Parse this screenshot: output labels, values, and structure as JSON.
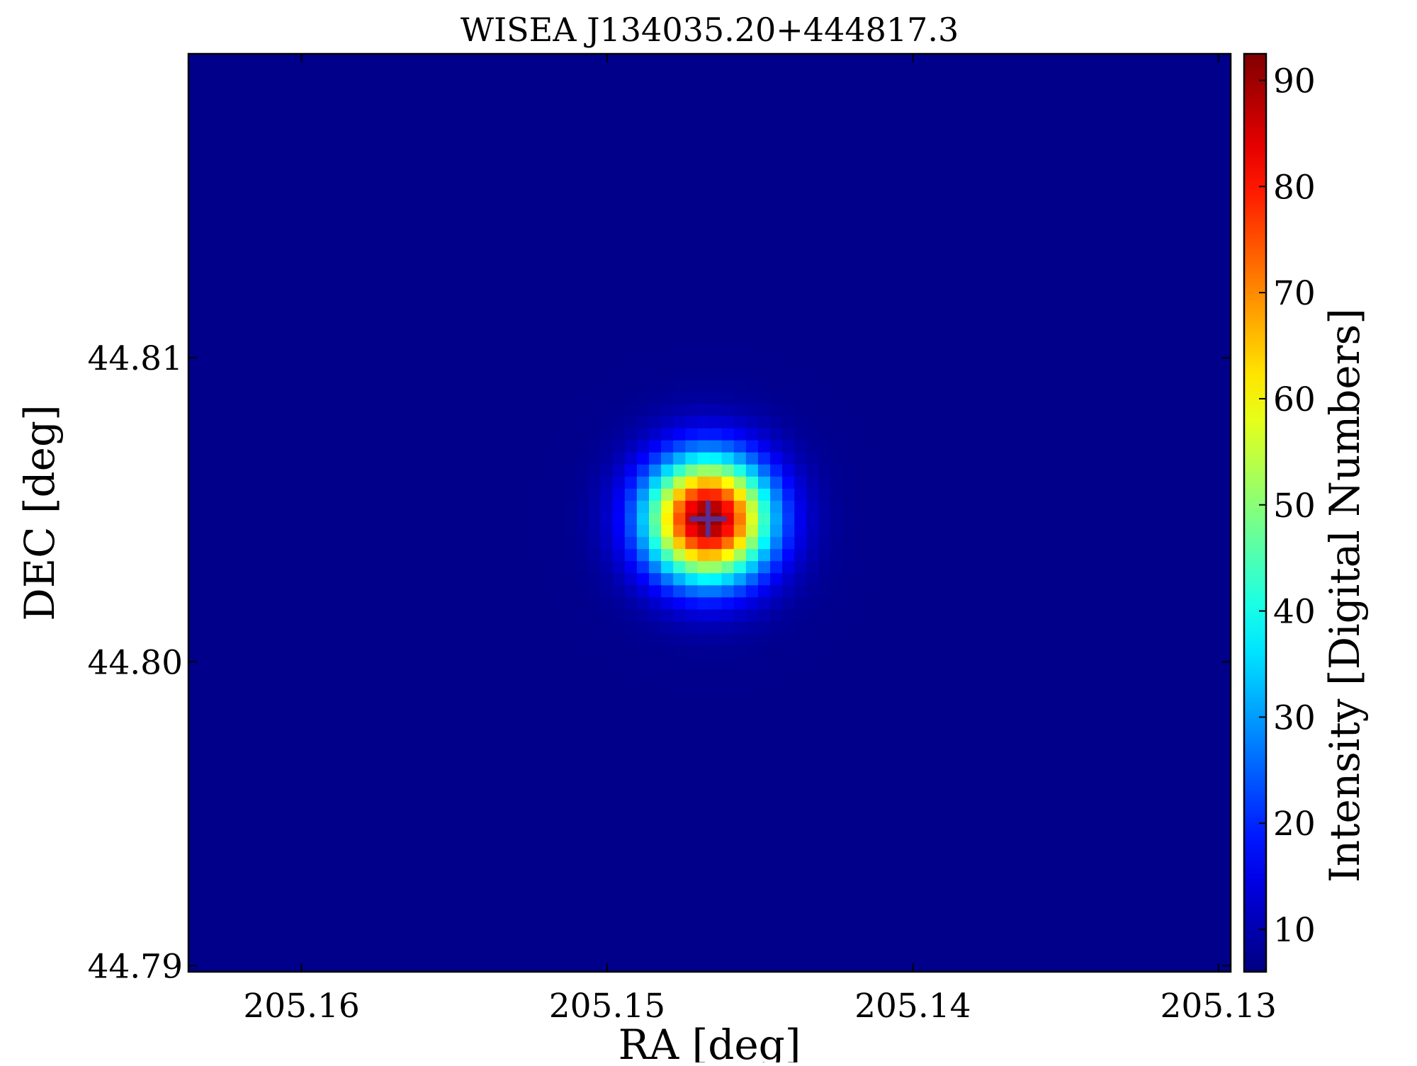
{
  "chart_data": {
    "type": "heatmap",
    "title": "WISEA J134035.20+444817.3",
    "xlabel": "RA [deg]",
    "ylabel": "DEC [deg]",
    "colorbar_label": "Intensity [Digital Numbers]",
    "colormap": "jet",
    "x_axis_reversed": true,
    "xlim": [
      205.1637,
      205.1296
    ],
    "ylim": [
      44.7898,
      44.82
    ],
    "xticks": [
      205.16,
      205.15,
      205.14,
      205.13
    ],
    "xtick_labels": [
      "205.16",
      "205.15",
      "205.14",
      "205.13"
    ],
    "yticks": [
      44.79,
      44.8,
      44.81
    ],
    "ytick_labels": [
      "44.79",
      "44.80",
      "44.81"
    ],
    "color_range": [
      6,
      92.5
    ],
    "colorbar_ticks": [
      10,
      20,
      30,
      40,
      50,
      60,
      70,
      80,
      90
    ],
    "colorbar_tick_labels": [
      "10",
      "20",
      "30",
      "40",
      "50",
      "60",
      "70",
      "80",
      "90"
    ],
    "grid": false,
    "source": {
      "ra": 205.1467,
      "dec": 44.8047,
      "peak_intensity": 92,
      "background_intensity": 7,
      "fwhm_deg": 0.0033
    },
    "marker": {
      "shape": "plus",
      "ra": 205.1467,
      "dec": 44.8047,
      "color": "#5b2d90"
    }
  }
}
